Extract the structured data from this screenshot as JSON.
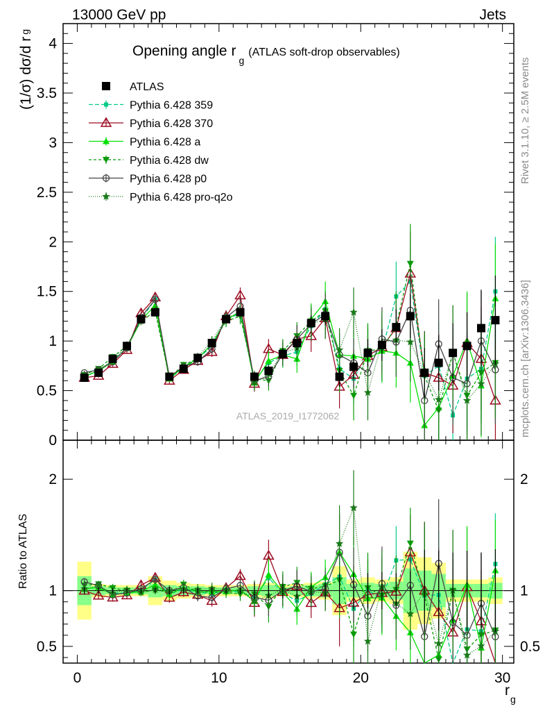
{
  "header": {
    "energy_label": "13000 GeV pp",
    "process_label": "Jets"
  },
  "side_labels": {
    "rivet": "Rivet 3.1.10, ≥ 2.5M events",
    "mcplots": "mcplots.cern.ch [arXiv:1306.3436]"
  },
  "colors": {
    "band_yellow": "#ffff88",
    "band_green": "#88ff88"
  },
  "chart_data": [
    {
      "type": "scatter",
      "title": "Opening angle r_g",
      "title_main": "Opening angle r",
      "title_sub": "g",
      "title_suffix": "(ATLAS soft-drop observables)",
      "ylabel": "(1/σ) dσ/d r_g",
      "ylabel_main": "(1/σ) dσ/d r",
      "ylabel_sub": "g",
      "watermark": "ATLAS_2019_I1772062",
      "xlim": [
        -1,
        30.8
      ],
      "ylim": [
        0,
        4.2
      ],
      "yticks": [
        "0",
        "0.5",
        "1",
        "1.5",
        "2",
        "2.5",
        "3",
        "3.5",
        "4"
      ],
      "legend_position": "top-left",
      "x": [
        0.5,
        1.5,
        2.5,
        3.5,
        4.5,
        5.5,
        6.5,
        7.5,
        8.5,
        9.5,
        10.5,
        11.5,
        12.5,
        13.5,
        14.5,
        15.5,
        16.5,
        17.5,
        18.5,
        19.5,
        20.5,
        21.5,
        22.5,
        23.5,
        24.5,
        25.5,
        26.5,
        27.5,
        28.5,
        29.5
      ],
      "series": [
        {
          "name": "ATLAS",
          "color": "#000000",
          "marker": "square",
          "dash": "none",
          "values": [
            0.63,
            0.68,
            0.82,
            0.95,
            1.22,
            1.29,
            0.64,
            0.72,
            0.83,
            0.98,
            1.22,
            1.29,
            0.64,
            0.7,
            0.87,
            0.98,
            1.18,
            1.25,
            0.64,
            0.74,
            0.88,
            0.96,
            1.14,
            1.25,
            0.68,
            0.78,
            0.88,
            0.95,
            1.13,
            1.21
          ],
          "err": [
            0.02,
            0.02,
            0.02,
            0.02,
            0.03,
            0.03,
            0.02,
            0.02,
            0.02,
            0.03,
            0.03,
            0.04,
            0.05,
            0.05,
            0.06,
            0.07,
            0.08,
            0.09,
            0.1,
            0.12,
            0.14,
            0.16,
            0.18,
            0.22,
            0.25,
            0.28,
            0.3,
            0.34,
            0.38,
            0.45
          ]
        },
        {
          "name": "Pythia 6.428 359",
          "color": "#00cc88",
          "marker": "small-square",
          "dash": "6,3",
          "values": [
            0.64,
            0.7,
            0.8,
            0.93,
            1.22,
            1.42,
            0.62,
            0.73,
            0.82,
            0.95,
            1.23,
            1.27,
            0.6,
            0.78,
            0.85,
            0.89,
            1.15,
            1.32,
            0.72,
            0.62,
            0.88,
            0.9,
            1.45,
            1.6,
            0.65,
            0.75,
            0.25,
            0.62,
            0.72,
            1.5
          ],
          "err": [
            0.02,
            0.02,
            0.03,
            0.03,
            0.04,
            0.05,
            0.03,
            0.03,
            0.04,
            0.05,
            0.06,
            0.08,
            0.08,
            0.1,
            0.12,
            0.14,
            0.16,
            0.2,
            0.22,
            0.25,
            0.28,
            0.32,
            0.35,
            0.4,
            0.42,
            0.45,
            0.48,
            0.5,
            0.52,
            0.55
          ]
        },
        {
          "name": "Pythia 6.428 370",
          "color": "#9b0a20",
          "marker": "open-triangle",
          "dash": "none",
          "values": [
            0.63,
            0.65,
            0.77,
            0.91,
            1.28,
            1.44,
            0.6,
            0.71,
            0.8,
            0.89,
            1.25,
            1.46,
            0.57,
            0.92,
            0.86,
            1.02,
            1.05,
            1.23,
            0.54,
            0.66,
            0.85,
            0.94,
            1.13,
            1.68,
            0.68,
            0.63,
            0.55,
            0.98,
            0.82,
            0.4
          ],
          "err": [
            0.02,
            0.02,
            0.03,
            0.03,
            0.04,
            0.05,
            0.03,
            0.03,
            0.04,
            0.05,
            0.06,
            0.08,
            0.08,
            0.1,
            0.12,
            0.14,
            0.16,
            0.2,
            0.22,
            0.25,
            0.28,
            0.32,
            0.35,
            0.42,
            0.42,
            0.45,
            0.48,
            0.5,
            0.52,
            0.55
          ]
        },
        {
          "name": "Pythia 6.428 a",
          "color": "#00e000",
          "marker": "filled-triangle",
          "dash": "none",
          "values": [
            0.64,
            0.7,
            0.79,
            0.93,
            1.21,
            1.36,
            0.62,
            0.74,
            0.82,
            0.97,
            1.21,
            1.3,
            0.58,
            0.8,
            0.86,
            0.82,
            1.22,
            1.4,
            0.86,
            0.85,
            0.82,
            0.9,
            0.88,
            0.78,
            0.15,
            0.33,
            0.65,
            1.0,
            0.55,
            1.43
          ],
          "err": [
            0.02,
            0.02,
            0.03,
            0.03,
            0.04,
            0.05,
            0.03,
            0.03,
            0.04,
            0.05,
            0.06,
            0.08,
            0.08,
            0.1,
            0.12,
            0.14,
            0.16,
            0.2,
            0.22,
            0.25,
            0.28,
            0.32,
            0.35,
            0.4,
            0.42,
            0.45,
            0.48,
            0.5,
            0.52,
            0.55
          ]
        },
        {
          "name": "Pythia 6.428 dw",
          "color": "#0a9a0a",
          "marker": "down-triangle",
          "dash": "4,3",
          "values": [
            0.66,
            0.72,
            0.84,
            0.95,
            1.2,
            1.3,
            0.63,
            0.76,
            0.82,
            0.97,
            1.2,
            1.25,
            0.62,
            0.6,
            0.9,
            1.05,
            1.2,
            1.3,
            0.7,
            0.45,
            0.9,
            0.92,
            1.15,
            1.78,
            0.65,
            0.3,
            0.88,
            0.45,
            0.68,
            0.78
          ],
          "err": [
            0.02,
            0.02,
            0.03,
            0.03,
            0.04,
            0.05,
            0.03,
            0.03,
            0.04,
            0.05,
            0.06,
            0.08,
            0.08,
            0.1,
            0.12,
            0.14,
            0.16,
            0.2,
            0.22,
            0.25,
            0.28,
            0.32,
            0.35,
            0.4,
            0.42,
            0.45,
            0.48,
            0.5,
            0.52,
            0.55
          ]
        },
        {
          "name": "Pythia 6.428 p0",
          "color": "#444444",
          "marker": "open-circle",
          "dash": "none",
          "values": [
            0.68,
            0.71,
            0.79,
            0.93,
            1.24,
            1.42,
            0.64,
            0.74,
            0.79,
            0.92,
            1.24,
            1.35,
            0.6,
            0.64,
            0.87,
            1.02,
            1.17,
            1.27,
            0.86,
            0.78,
            0.68,
            1.02,
            0.99,
            1.31,
            0.4,
            0.97,
            0.63,
            0.57,
            1.0,
            0.71
          ],
          "err": [
            0.02,
            0.02,
            0.03,
            0.03,
            0.04,
            0.05,
            0.03,
            0.03,
            0.04,
            0.05,
            0.06,
            0.08,
            0.08,
            0.1,
            0.12,
            0.14,
            0.16,
            0.2,
            0.22,
            0.25,
            0.28,
            0.32,
            0.35,
            0.4,
            0.42,
            0.45,
            0.48,
            0.5,
            0.52,
            0.55
          ]
        },
        {
          "name": "Pythia 6.428 pro-q2o",
          "color": "#1a7a1a",
          "marker": "star",
          "dash": "1,2",
          "values": [
            0.64,
            0.71,
            0.8,
            0.96,
            1.2,
            1.3,
            0.64,
            0.73,
            0.84,
            1.0,
            1.23,
            1.29,
            0.58,
            0.67,
            0.88,
            0.93,
            1.17,
            1.22,
            0.91,
            1.29,
            0.48,
            0.99,
            1.01,
            0.99,
            0.68,
            0.41,
            0.88,
            0.4,
            0.57,
            0.77
          ],
          "err": [
            0.02,
            0.02,
            0.03,
            0.03,
            0.04,
            0.05,
            0.03,
            0.03,
            0.04,
            0.05,
            0.06,
            0.08,
            0.08,
            0.1,
            0.12,
            0.14,
            0.16,
            0.2,
            0.22,
            0.25,
            0.28,
            0.32,
            0.35,
            0.4,
            0.42,
            0.45,
            0.48,
            0.5,
            0.52,
            0.55
          ]
        }
      ]
    },
    {
      "type": "scatter",
      "ylabel": "Ratio to ATLAS",
      "xlabel": "r_g",
      "xlabel_main": "r",
      "xlabel_sub": "g",
      "xlim": [
        -1,
        30.8
      ],
      "ylim": [
        0.35,
        2.35
      ],
      "yticks": [
        "0.5",
        "1",
        "2"
      ],
      "xticks": [
        "0",
        "10",
        "20",
        "30"
      ],
      "band_half_width_yellow": [
        0.26,
        0.06,
        0.05,
        0.05,
        0.05,
        0.13,
        0.09,
        0.07,
        0.06,
        0.05,
        0.05,
        0.05,
        0.06,
        0.07,
        0.05,
        0.06,
        0.07,
        0.08,
        0.22,
        0.1,
        0.12,
        0.1,
        0.12,
        0.35,
        0.3,
        0.25,
        0.1,
        0.1,
        0.1,
        0.12
      ],
      "band_half_width_green": [
        0.13,
        0.04,
        0.03,
        0.03,
        0.03,
        0.06,
        0.05,
        0.04,
        0.04,
        0.03,
        0.03,
        0.03,
        0.04,
        0.05,
        0.03,
        0.04,
        0.05,
        0.06,
        0.12,
        0.06,
        0.07,
        0.06,
        0.08,
        0.2,
        0.18,
        0.15,
        0.06,
        0.06,
        0.06,
        0.07
      ]
    }
  ]
}
